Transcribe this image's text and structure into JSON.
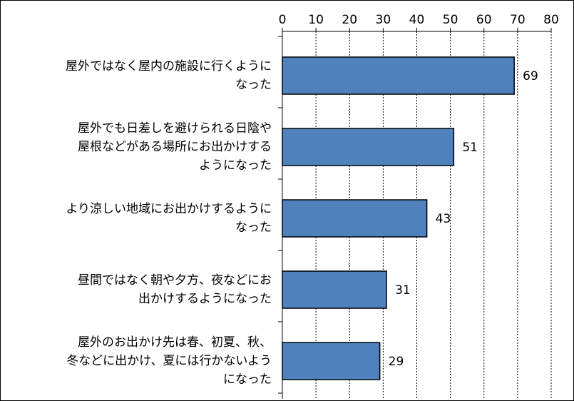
{
  "chart_data": {
    "type": "bar",
    "orientation": "horizontal",
    "title": "",
    "xlabel": "",
    "ylabel": "",
    "xlim": [
      0,
      80
    ],
    "ticks": [
      0,
      10,
      20,
      30,
      40,
      50,
      60,
      70,
      80
    ],
    "tick_labels": [
      "0",
      "10",
      "20",
      "30",
      "40",
      "50",
      "60",
      "70",
      "80"
    ],
    "grid": true,
    "legend": "none",
    "bar_color": "#4F81BD",
    "categories": [
      [
        "屋外ではなく屋内の施設に行くように",
        "なった"
      ],
      [
        "屋外でも日差しを避けられる日陰や",
        "屋根などがある場所にお出かけする",
        "ようになった"
      ],
      [
        "より涼しい地域にお出かけするように",
        "なった"
      ],
      [
        "昼間ではなく朝や夕方、夜などにお",
        "出かけするようになった"
      ],
      [
        "屋外のお出かけ先は春、初夏、秋、",
        "冬などに出かけ、夏には行かないよう",
        "になった"
      ]
    ],
    "values": [
      69,
      51,
      43,
      31,
      29
    ],
    "value_labels": [
      "69",
      "51",
      "43",
      "31",
      "29"
    ]
  }
}
